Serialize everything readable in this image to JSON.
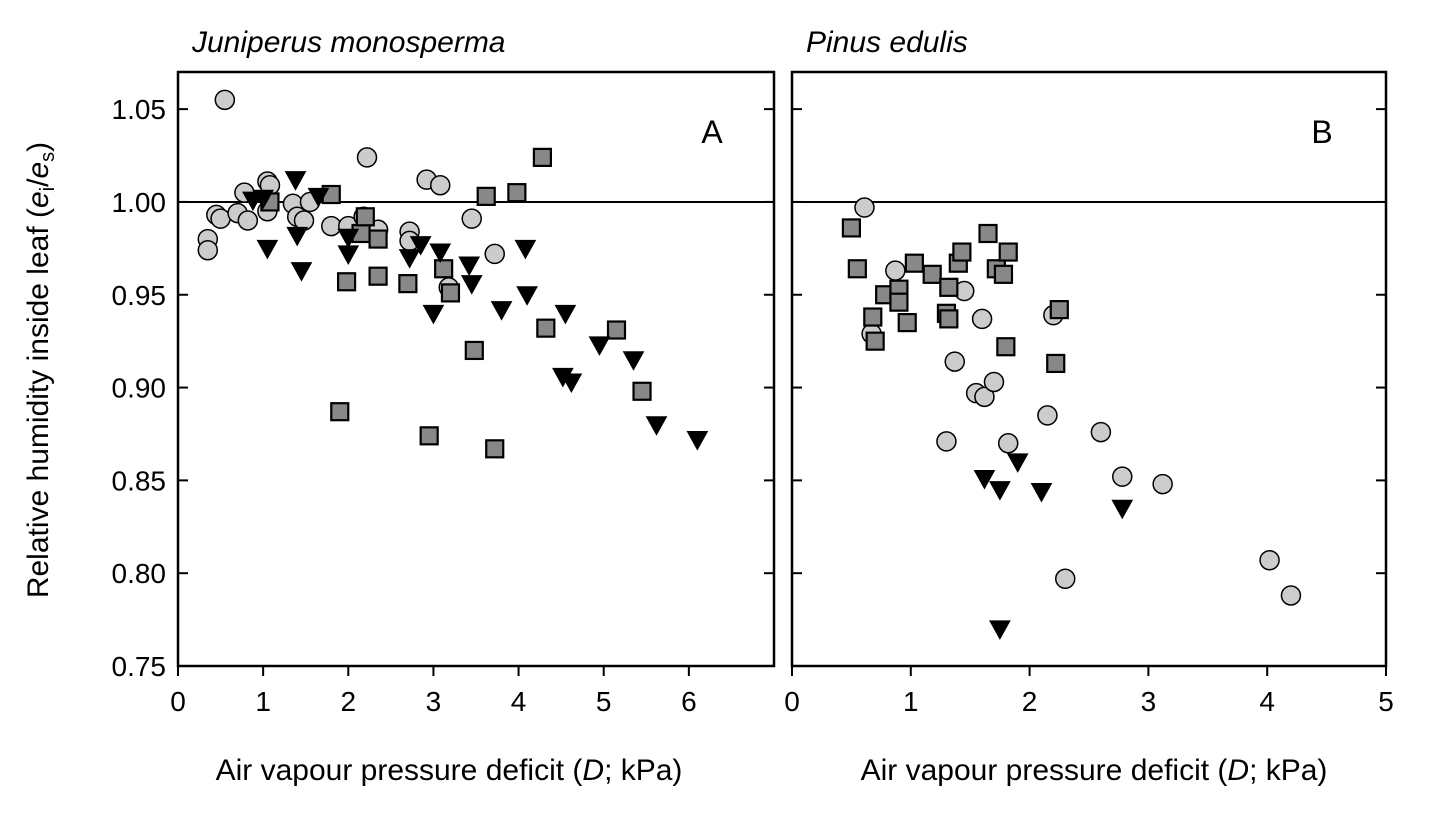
{
  "ylabel_main": "Relative humidity inside leaf (",
  "ylabel_ei": "e",
  "ylabel_i": "i",
  "ylabel_slash": "/",
  "ylabel_es": "e",
  "ylabel_s": "s",
  "ylabel_close": ")",
  "colors": {
    "circle_fill": "#cccccc",
    "square_fill": "#888888",
    "triangle_fill": "#000000",
    "marker_stroke": "#000000"
  },
  "chart_data": [
    {
      "type": "scatter",
      "title": "Juniperus monosperma",
      "panel_label": "A",
      "xlabel_main": "Air vapour pressure deficit (",
      "xlabel_italic": "D",
      "xlabel_end": "; kPa)",
      "xlim": [
        0,
        7
      ],
      "ylim": [
        0.75,
        1.07
      ],
      "xticks": [
        0,
        1,
        2,
        3,
        4,
        5,
        6
      ],
      "yticks": [
        0.75,
        0.8,
        0.85,
        0.9,
        0.95,
        1.0,
        1.05
      ],
      "ytick_labels": [
        "0.75",
        "0.80",
        "0.85",
        "0.90",
        "0.95",
        "1.00",
        "1.05"
      ],
      "reference_line": 1.0,
      "grid": false,
      "series": [
        {
          "marker": "circle",
          "points": [
            [
              0.55,
              1.055
            ],
            [
              0.35,
              0.98
            ],
            [
              0.35,
              0.974
            ],
            [
              0.45,
              0.993
            ],
            [
              0.5,
              0.991
            ],
            [
              0.7,
              0.994
            ],
            [
              0.78,
              1.005
            ],
            [
              0.82,
              0.99
            ],
            [
              1.05,
              1.011
            ],
            [
              1.05,
              0.995
            ],
            [
              1.08,
              1.009
            ],
            [
              1.35,
              0.999
            ],
            [
              1.4,
              0.992
            ],
            [
              1.48,
              0.99
            ],
            [
              1.55,
              1.0
            ],
            [
              1.8,
              0.987
            ],
            [
              2.0,
              0.987
            ],
            [
              2.18,
              0.992
            ],
            [
              2.22,
              1.024
            ],
            [
              2.35,
              0.985
            ],
            [
              2.72,
              0.984
            ],
            [
              2.72,
              0.979
            ],
            [
              2.92,
              1.012
            ],
            [
              3.08,
              1.009
            ],
            [
              3.18,
              0.954
            ],
            [
              3.45,
              0.991
            ],
            [
              3.72,
              0.972
            ]
          ]
        },
        {
          "marker": "square",
          "points": [
            [
              1.08,
              1.0
            ],
            [
              1.8,
              1.004
            ],
            [
              1.9,
              0.887
            ],
            [
              2.15,
              0.983
            ],
            [
              2.2,
              0.992
            ],
            [
              2.35,
              0.98
            ],
            [
              2.35,
              0.96
            ],
            [
              1.98,
              0.957
            ],
            [
              2.7,
              0.956
            ],
            [
              2.95,
              0.874
            ],
            [
              3.12,
              0.964
            ],
            [
              3.2,
              0.951
            ],
            [
              3.48,
              0.92
            ],
            [
              3.62,
              1.003
            ],
            [
              3.72,
              0.867
            ],
            [
              3.98,
              1.005
            ],
            [
              4.28,
              1.024
            ],
            [
              4.32,
              0.932
            ],
            [
              5.15,
              0.931
            ],
            [
              5.45,
              0.898
            ]
          ]
        },
        {
          "marker": "triangle",
          "points": [
            [
              0.88,
              1.001
            ],
            [
              1.0,
              1.002
            ],
            [
              1.05,
              0.975
            ],
            [
              1.38,
              1.012
            ],
            [
              1.4,
              0.982
            ],
            [
              1.45,
              0.963
            ],
            [
              1.65,
              1.003
            ],
            [
              2.0,
              0.981
            ],
            [
              2.0,
              0.972
            ],
            [
              2.72,
              0.97
            ],
            [
              2.85,
              0.977
            ],
            [
              3.0,
              0.94
            ],
            [
              3.08,
              0.973
            ],
            [
              3.42,
              0.966
            ],
            [
              3.45,
              0.956
            ],
            [
              3.8,
              0.942
            ],
            [
              4.08,
              0.975
            ],
            [
              4.1,
              0.95
            ],
            [
              4.52,
              0.906
            ],
            [
              4.55,
              0.94
            ],
            [
              4.62,
              0.903
            ],
            [
              4.95,
              0.923
            ],
            [
              5.35,
              0.915
            ],
            [
              5.62,
              0.88
            ],
            [
              6.1,
              0.872
            ]
          ]
        }
      ]
    },
    {
      "type": "scatter",
      "title": "Pinus edulis",
      "panel_label": "B",
      "xlabel_main": "Air vapour pressure deficit (",
      "xlabel_italic": "D",
      "xlabel_end": "; kPa)",
      "xlim": [
        0,
        5
      ],
      "ylim": [
        0.75,
        1.07
      ],
      "xticks": [
        0,
        1,
        2,
        3,
        4,
        5
      ],
      "yticks": [
        0.75,
        0.8,
        0.85,
        0.9,
        0.95,
        1.0,
        1.05
      ],
      "reference_line": 1.0,
      "grid": false,
      "series": [
        {
          "marker": "circle",
          "points": [
            [
              0.61,
              0.997
            ],
            [
              0.67,
              0.929
            ],
            [
              0.87,
              0.963
            ],
            [
              1.3,
              0.871
            ],
            [
              1.37,
              0.914
            ],
            [
              1.45,
              0.952
            ],
            [
              1.55,
              0.897
            ],
            [
              1.6,
              0.937
            ],
            [
              1.62,
              0.895
            ],
            [
              1.7,
              0.903
            ],
            [
              1.82,
              0.87
            ],
            [
              2.15,
              0.885
            ],
            [
              2.2,
              0.939
            ],
            [
              2.3,
              0.797
            ],
            [
              2.6,
              0.876
            ],
            [
              2.78,
              0.852
            ],
            [
              3.12,
              0.848
            ],
            [
              4.02,
              0.807
            ],
            [
              4.2,
              0.788
            ]
          ]
        },
        {
          "marker": "square",
          "points": [
            [
              0.5,
              0.986
            ],
            [
              0.55,
              0.964
            ],
            [
              0.68,
              0.938
            ],
            [
              0.7,
              0.925
            ],
            [
              0.78,
              0.95
            ],
            [
              0.9,
              0.953
            ],
            [
              0.9,
              0.946
            ],
            [
              0.97,
              0.935
            ],
            [
              1.03,
              0.967
            ],
            [
              1.18,
              0.961
            ],
            [
              1.3,
              0.94
            ],
            [
              1.32,
              0.937
            ],
            [
              1.32,
              0.954
            ],
            [
              1.4,
              0.967
            ],
            [
              1.43,
              0.973
            ],
            [
              1.65,
              0.983
            ],
            [
              1.72,
              0.964
            ],
            [
              1.78,
              0.961
            ],
            [
              1.82,
              0.973
            ],
            [
              1.8,
              0.922
            ],
            [
              2.22,
              0.913
            ],
            [
              2.25,
              0.942
            ]
          ]
        },
        {
          "marker": "triangle",
          "points": [
            [
              1.62,
              0.851
            ],
            [
              1.75,
              0.845
            ],
            [
              1.75,
              0.77
            ],
            [
              1.9,
              0.86
            ],
            [
              2.1,
              0.844
            ],
            [
              2.78,
              0.835
            ]
          ]
        }
      ]
    }
  ]
}
